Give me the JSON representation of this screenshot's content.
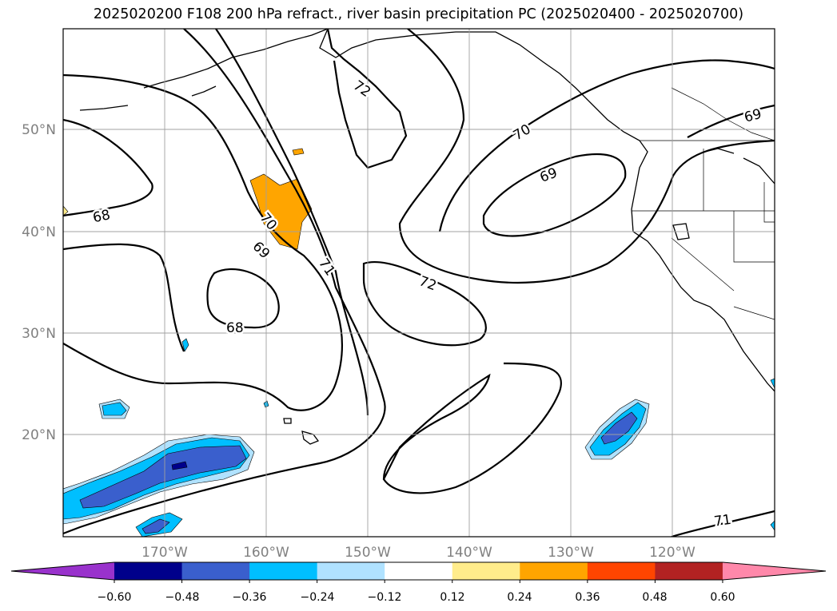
{
  "title": "2025020200 F108 200 hPa refract., river basin precipitation PC (2025020400 - 2025020700)",
  "map": {
    "lon_range": [
      -180,
      -110
    ],
    "lat_range": [
      10,
      60
    ],
    "lat_labels": [
      "50°N",
      "40°N",
      "30°N",
      "20°N"
    ],
    "lon_labels": [
      "170°W",
      "160°W",
      "150°W",
      "140°W",
      "130°W",
      "120°W"
    ],
    "contour_labels": [
      "72",
      "70",
      "69",
      "68",
      "70",
      "69",
      "71",
      "72",
      "68",
      "69",
      "71"
    ],
    "contour_levels": [
      68,
      69,
      70,
      71,
      72
    ],
    "grid": true
  },
  "colorbar": {
    "ticks": [
      "−0.60",
      "−0.48",
      "−0.36",
      "−0.24",
      "−0.12",
      "0.12",
      "0.24",
      "0.36",
      "0.48",
      "0.60"
    ],
    "colors": [
      "#9932cc",
      "#00008b",
      "#3a5fcd",
      "#00bfff",
      "#b0e2ff",
      "#ffffff",
      "#ffec8b",
      "#ffa500",
      "#ff4500",
      "#b22222",
      "#ff88aa"
    ],
    "extend": "both"
  }
}
